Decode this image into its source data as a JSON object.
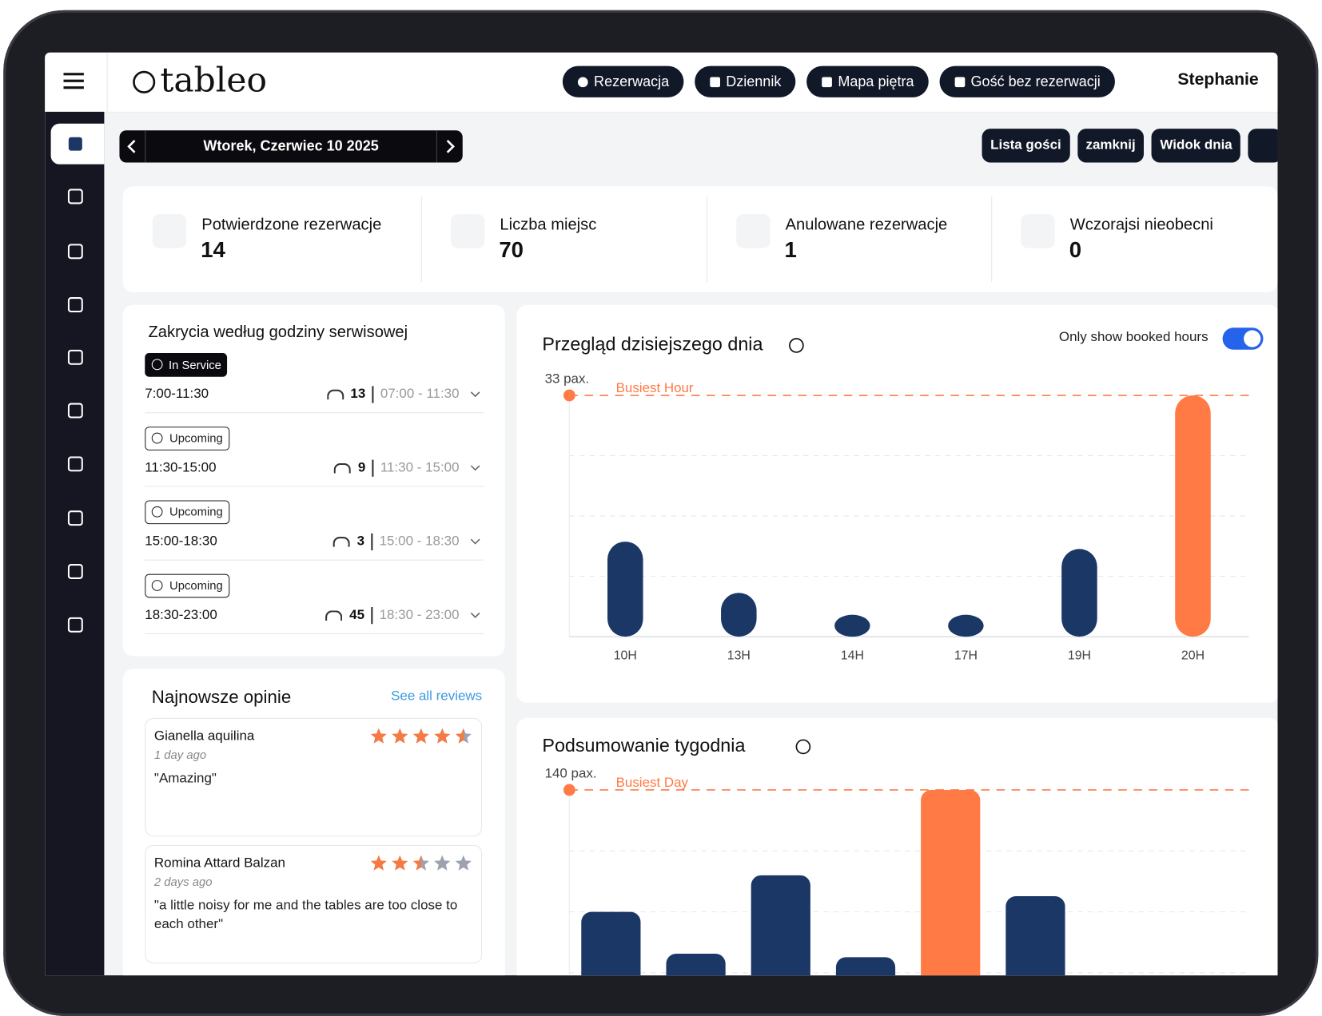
{
  "header": {
    "logo": "tableo",
    "buttons": [
      "Rezerwacja",
      "Dziennik",
      "Mapa piętra",
      "Gość bez rezerwacji"
    ],
    "user": "Stephanie"
  },
  "date_bar": {
    "date": "Wtorek, Czerwiec 10 2025"
  },
  "actions": [
    "Lista gości",
    "zamknij",
    "Widok dnia"
  ],
  "stats": [
    {
      "label": "Potwierdzone rezerwacje",
      "value": 14
    },
    {
      "label": "Liczba miejsc",
      "value": 70
    },
    {
      "label": "Anulowane rezerwacje",
      "value": 1
    },
    {
      "label": "Wczorajsi nieobecni",
      "value": 0
    }
  ],
  "services": {
    "title": "Zakrycia według godziny serwisowej",
    "items": [
      {
        "status": "In Service",
        "name": "7:00-11:30",
        "pax": 13,
        "range": "07:00 - 11:30"
      },
      {
        "status": "Upcoming",
        "name": "11:30-15:00",
        "pax": 9,
        "range": "11:30 - 15:00"
      },
      {
        "status": "Upcoming",
        "name": "15:00-18:30",
        "pax": 3,
        "range": "15:00 - 18:30"
      },
      {
        "status": "Upcoming",
        "name": "18:30-23:00",
        "pax": 45,
        "range": "18:30 - 23:00"
      }
    ]
  },
  "reviews": {
    "title": "Najnowsze opinie",
    "link": "See all reviews",
    "items": [
      {
        "author": "Gianella aquilina",
        "time": "1 day ago",
        "rating": 4.5,
        "text": "\"Amazing\""
      },
      {
        "author": "Romina Attard Balzan",
        "time": "2 days ago",
        "rating": 2.5,
        "text": "\"a little noisy for me and the tables are too close to each other\""
      }
    ]
  },
  "toggle": {
    "label": "Only show booked hours",
    "on": true
  },
  "chart_data": [
    {
      "type": "bar",
      "title": "Przegląd dzisiejszego dnia",
      "annotation": "Busiest Hour",
      "categories": [
        "10H",
        "13H",
        "14H",
        "17H",
        "19H",
        "20H"
      ],
      "values": [
        13,
        6,
        3,
        3,
        12,
        33
      ],
      "color": "#1b3766",
      "highlight_color": "#ff7a45",
      "ylim": [
        0,
        33
      ],
      "yticks": [
        {
          "value": 33,
          "label": "33 pax."
        }
      ],
      "grid": true
    },
    {
      "type": "bar",
      "title": "Podsumowanie tygodnia",
      "annotation": "Busiest Day",
      "categories": [
        null,
        null,
        null,
        null,
        null,
        null
      ],
      "values": [
        70,
        46,
        91,
        44,
        140,
        79
      ],
      "color": "#1b3766",
      "highlight_color": "#ff7a45",
      "ylim": [
        0,
        140
      ],
      "yticks": [
        {
          "value": 140,
          "label": "140 pax."
        }
      ],
      "grid": true
    }
  ]
}
